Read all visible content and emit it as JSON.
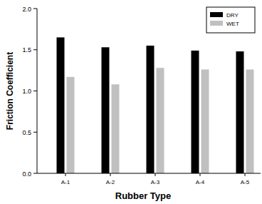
{
  "chart_data": {
    "type": "bar",
    "x_label": "Rubber Type",
    "y_label": "Friction Coefficient",
    "categories": [
      "A-1",
      "A-2",
      "A-3",
      "A-4",
      "A-5"
    ],
    "series": [
      {
        "name": "DRY",
        "color": "#000000",
        "values": [
          1.65,
          1.53,
          1.55,
          1.49,
          1.48
        ]
      },
      {
        "name": "WET",
        "color": "#c0c0c0",
        "values": [
          1.17,
          1.08,
          1.28,
          1.26,
          1.26
        ]
      }
    ],
    "ylim": [
      0,
      2
    ],
    "yticks": [
      {
        "value": 0,
        "label": "0.0"
      },
      0.5,
      {
        "value": 1,
        "label": "1.0"
      },
      1.5,
      {
        "value": 2,
        "label": "2.0"
      }
    ],
    "grid": false,
    "legend": "top-right"
  }
}
